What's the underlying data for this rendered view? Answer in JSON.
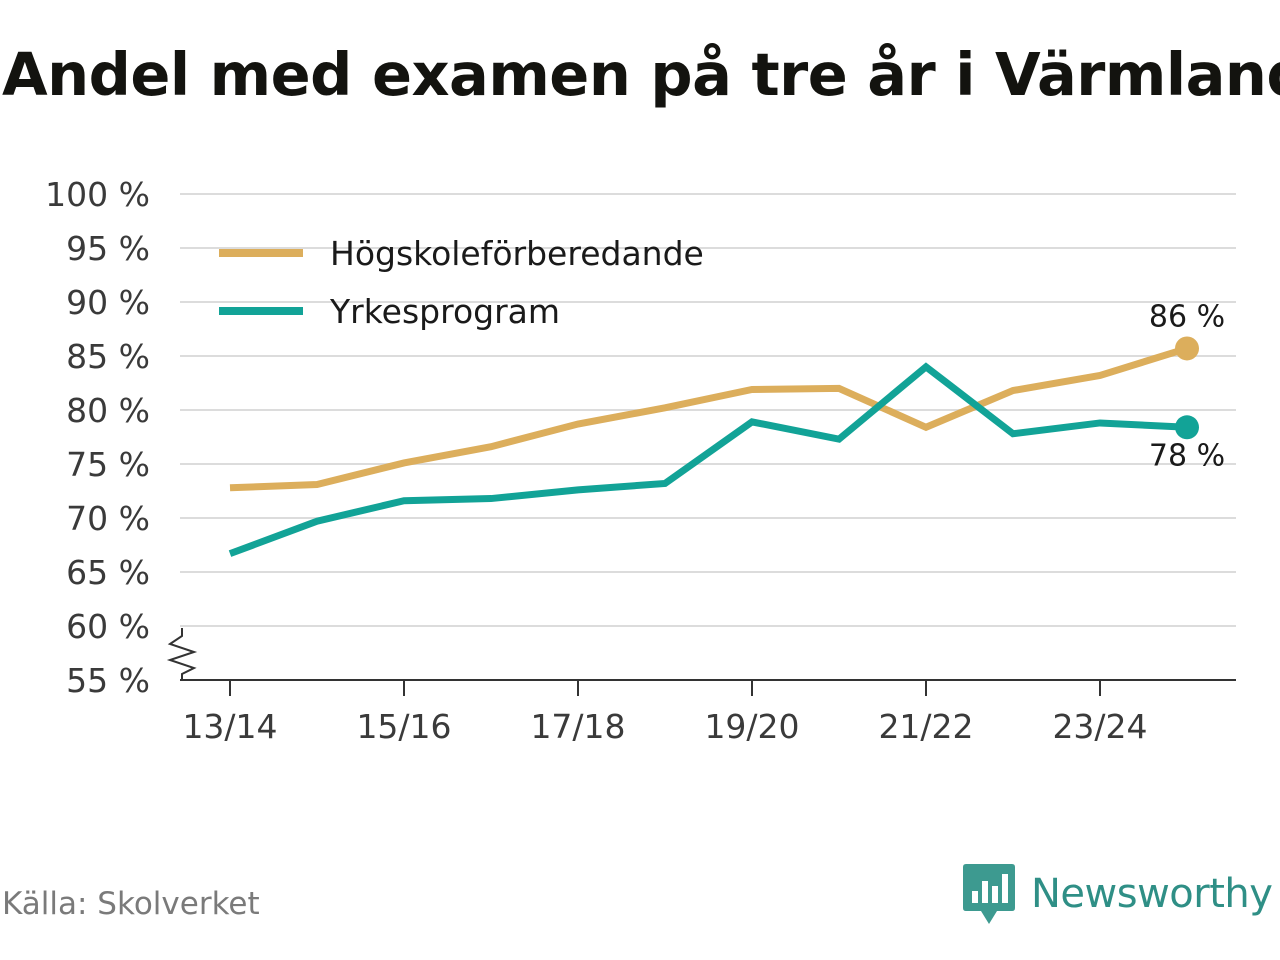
{
  "title": "Andel med examen på tre år i Värmland",
  "source": "Källa: Skolverket",
  "brand": {
    "name": "Newsworthy",
    "icon": "newsworthy-logo-icon",
    "color": "#2f8f86"
  },
  "chart_data": {
    "type": "line",
    "title": "Andel med examen på tre år i Värmland",
    "xlabel": "",
    "ylabel": "",
    "categories": [
      "13/14",
      "14/15",
      "15/16",
      "16/17",
      "17/18",
      "18/19",
      "19/20",
      "20/21",
      "21/22",
      "22/23",
      "23/24",
      "24/25"
    ],
    "x_tick_labels": [
      "13/14",
      "",
      "15/16",
      "",
      "17/18",
      "",
      "19/20",
      "",
      "21/22",
      "",
      "23/24",
      ""
    ],
    "y_ticks": [
      55,
      60,
      65,
      70,
      75,
      80,
      85,
      90,
      95,
      100
    ],
    "y_tick_labels": [
      "55 %",
      "60 %",
      "65 %",
      "70 %",
      "75 %",
      "80 %",
      "85 %",
      "90 %",
      "95 %",
      "100 %"
    ],
    "ylim": [
      55,
      100
    ],
    "axis_break": true,
    "grid": true,
    "legend_position": "top-left",
    "series": [
      {
        "name": "Högskoleförberedande",
        "color": "#dcae5c",
        "values": [
          72.8,
          73.1,
          75.1,
          76.6,
          78.7,
          80.2,
          81.9,
          82.0,
          78.4,
          81.8,
          83.2,
          85.7
        ],
        "end_label": "86 %"
      },
      {
        "name": "Yrkesprogram",
        "color": "#12a397",
        "values": [
          66.7,
          69.7,
          71.6,
          71.8,
          72.6,
          73.2,
          78.9,
          77.3,
          84.0,
          77.8,
          78.8,
          78.4
        ],
        "end_label": "78 %"
      }
    ]
  }
}
